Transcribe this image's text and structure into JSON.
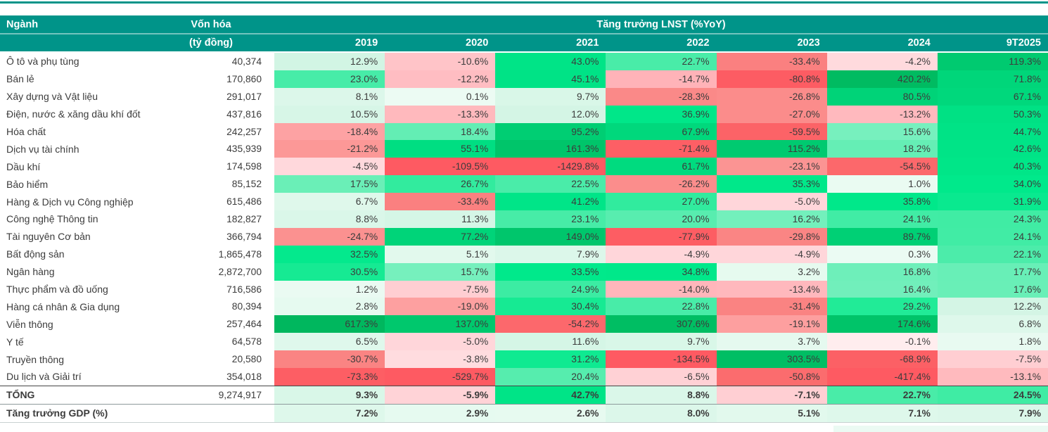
{
  "chart_data": {
    "type": "heatmap",
    "title_col": "Ngành",
    "cap_col": "Vốn hóa",
    "cap_unit": "(tỷ đồng)",
    "group_header": "Tăng trưởng LNST (%YoY)",
    "years": [
      "2019",
      "2020",
      "2021",
      "2022",
      "2023",
      "2024",
      "9T2025"
    ],
    "rows": [
      {
        "sector": "Ô tô và phụ tùng",
        "cap": "40,374",
        "growth": [
          12.9,
          -10.6,
          43.0,
          22.7,
          -33.4,
          -4.2,
          119.3
        ]
      },
      {
        "sector": "Bán lẻ",
        "cap": "170,860",
        "growth": [
          23.0,
          -12.2,
          45.1,
          -14.7,
          -80.8,
          420.2,
          71.8
        ]
      },
      {
        "sector": "Xây dựng và Vật liệu",
        "cap": "291,017",
        "growth": [
          8.1,
          0.1,
          9.7,
          -28.3,
          -26.8,
          80.5,
          67.1
        ]
      },
      {
        "sector": "Điện, nước & xăng dầu khí đốt",
        "cap": "437,816",
        "growth": [
          10.5,
          -13.3,
          12.0,
          36.9,
          -27.0,
          -13.2,
          50.3
        ]
      },
      {
        "sector": "Hóa chất",
        "cap": "242,257",
        "growth": [
          -18.4,
          18.4,
          95.2,
          67.9,
          -59.5,
          15.6,
          44.7
        ]
      },
      {
        "sector": "Dịch vụ tài chính",
        "cap": "435,939",
        "growth": [
          -21.2,
          55.1,
          161.3,
          -71.4,
          115.2,
          18.2,
          42.6
        ]
      },
      {
        "sector": "Dầu khí",
        "cap": "174,598",
        "growth": [
          -4.5,
          -109.5,
          -1429.8,
          61.7,
          -23.1,
          -54.5,
          40.3
        ]
      },
      {
        "sector": "Bảo hiểm",
        "cap": "85,152",
        "growth": [
          17.5,
          26.7,
          22.5,
          -26.2,
          35.3,
          1.0,
          34.0
        ]
      },
      {
        "sector": "Hàng & Dịch vụ Công nghiệp",
        "cap": "615,486",
        "growth": [
          6.7,
          -33.4,
          41.2,
          27.0,
          -5.0,
          35.8,
          31.9
        ]
      },
      {
        "sector": "Công nghệ Thông tin",
        "cap": "182,827",
        "growth": [
          8.8,
          11.3,
          23.1,
          20.0,
          16.2,
          24.1,
          24.3
        ]
      },
      {
        "sector": "Tài nguyên Cơ bản",
        "cap": "366,794",
        "growth": [
          -24.7,
          77.2,
          149.0,
          -77.9,
          -29.8,
          89.7,
          24.1
        ]
      },
      {
        "sector": "Bất động sản",
        "cap": "1,865,478",
        "growth": [
          32.5,
          5.1,
          7.9,
          -4.9,
          -4.9,
          0.3,
          22.1
        ]
      },
      {
        "sector": "Ngân hàng",
        "cap": "2,872,700",
        "growth": [
          30.5,
          15.7,
          33.5,
          34.8,
          3.2,
          16.8,
          17.7
        ]
      },
      {
        "sector": "Thực phẩm và đồ uống",
        "cap": "716,586",
        "growth": [
          1.2,
          -7.5,
          24.9,
          -14.0,
          -13.4,
          16.4,
          17.6
        ]
      },
      {
        "sector": "Hàng cá nhân & Gia dụng",
        "cap": "80,394",
        "growth": [
          2.8,
          -19.0,
          30.4,
          22.8,
          -31.4,
          29.2,
          12.2
        ]
      },
      {
        "sector": "Viễn thông",
        "cap": "257,464",
        "growth": [
          617.3,
          137.0,
          -54.2,
          307.6,
          -19.1,
          174.6,
          6.8
        ]
      },
      {
        "sector": "Y tế",
        "cap": "64,578",
        "growth": [
          6.5,
          -5.0,
          11.6,
          9.7,
          3.7,
          -0.1,
          1.8
        ]
      },
      {
        "sector": "Truyền thông",
        "cap": "20,580",
        "growth": [
          -30.7,
          -3.8,
          31.2,
          -134.5,
          303.5,
          -68.9,
          -7.5
        ]
      },
      {
        "sector": "Du lịch và Giải trí",
        "cap": "354,018",
        "growth": [
          -73.3,
          -529.7,
          20.4,
          -6.5,
          -50.8,
          -417.4,
          -13.1
        ]
      }
    ],
    "total_row": {
      "sector": "TỔNG",
      "cap": "9,274,917",
      "growth": [
        9.3,
        -5.9,
        42.7,
        8.8,
        -7.1,
        22.7,
        24.5
      ]
    },
    "gdp_row": {
      "sector": "Tăng trưởng GDP (%)",
      "cap": "",
      "growth": [
        7.2,
        2.9,
        2.6,
        8.0,
        5.1,
        7.1,
        7.9
      ]
    }
  },
  "colors": {
    "header_bg": "#009489",
    "positive_scale": [
      [
        0,
        "#ECFBF3"
      ],
      [
        13,
        "#D2F5E4"
      ],
      [
        14,
        "#82F1C3"
      ],
      [
        20,
        "#58EDAF"
      ],
      [
        28,
        "#2BEB9B"
      ],
      [
        33,
        "#00E98B"
      ],
      [
        50,
        "#00E184"
      ],
      [
        70,
        "#00D77B"
      ],
      [
        100,
        "#00CC72"
      ],
      [
        180,
        "#00C368"
      ],
      [
        350,
        "#00BC62"
      ],
      [
        620,
        "#00B75E"
      ]
    ],
    "negative_scale": [
      [
        0,
        "#FFEDEE"
      ],
      [
        5,
        "#FFD6DA"
      ],
      [
        10,
        "#FFC6CA"
      ],
      [
        15,
        "#FFB2B7"
      ],
      [
        20,
        "#FC9B9A"
      ],
      [
        30,
        "#FA8584"
      ],
      [
        45,
        "#FB7173"
      ],
      [
        60,
        "#FC6367"
      ],
      [
        80,
        "#FD5C63"
      ],
      [
        110,
        "#FE5A62"
      ]
    ]
  }
}
